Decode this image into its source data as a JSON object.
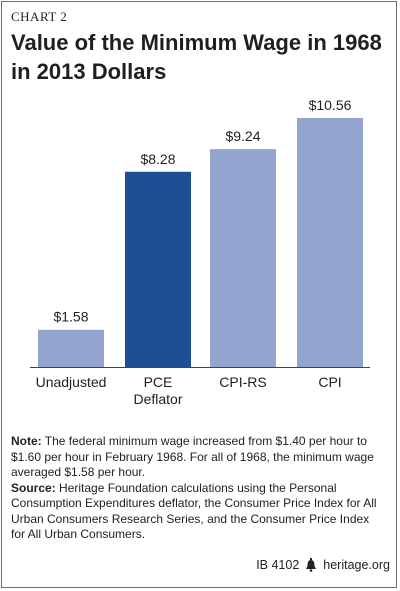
{
  "header": {
    "chart_number": "CHART 2",
    "title_line1": "Value of the Minimum Wage in 1968",
    "title_line2": "in 2013 Dollars"
  },
  "chart_data": {
    "type": "bar",
    "title": "Value of the Minimum Wage in 1968 in 2013 Dollars",
    "categories": [
      [
        "Unadjusted"
      ],
      [
        "PCE",
        "Deflator"
      ],
      [
        "CPI-RS"
      ],
      [
        "CPI"
      ]
    ],
    "values": [
      1.58,
      8.28,
      9.24,
      10.56
    ],
    "value_labels": [
      "$1.58",
      "$8.28",
      "$9.24",
      "$10.56"
    ],
    "colors": [
      "#93a5cf",
      "#1e4f94",
      "#93a5cf",
      "#93a5cf"
    ],
    "ylim": [
      0,
      10.56
    ],
    "grid": false,
    "xlabel": "",
    "ylabel": ""
  },
  "notes": {
    "note_label": "Note:",
    "note_text": " The federal minimum wage increased from $1.40 per hour to $1.60 per hour in February 1968. For all of 1968, the minimum wage averaged $1.58 per hour.",
    "source_label": "Source:",
    "source_text": " Heritage Foundation calculations using the Personal Consumption Expenditures deflator, the Consumer Price Index for All Urban Consumers Research Series, and the Consumer Price Index for All Urban Consumers."
  },
  "footer": {
    "id": "IB 4102",
    "site": "heritage.org",
    "logo_icon": "liberty-bell-icon"
  }
}
